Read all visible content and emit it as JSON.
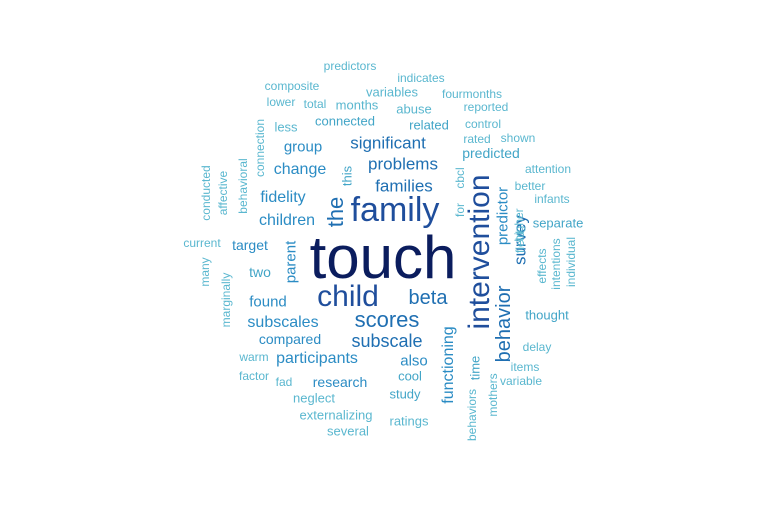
{
  "palette": {
    "c0": "#0b1d5e",
    "c1": "#1f4e9c",
    "c2": "#1f6fb2",
    "c3": "#2b8cc4",
    "c4": "#42a5c7",
    "c5": "#5ab7cf"
  },
  "words": [
    {
      "text": "touch",
      "size": 60,
      "rot": 0,
      "color": "c0"
    },
    {
      "text": "family",
      "size": 34,
      "rot": 0,
      "color": "c1"
    },
    {
      "text": "intervention",
      "size": 30,
      "rot": 1,
      "color": "c1"
    },
    {
      "text": "child",
      "size": 30,
      "rot": 0,
      "color": "c1"
    },
    {
      "text": "scores",
      "size": 22,
      "rot": 0,
      "color": "c2"
    },
    {
      "text": "the",
      "size": 22,
      "rot": 1,
      "color": "c2"
    },
    {
      "text": "beta",
      "size": 20,
      "rot": 0,
      "color": "c2"
    },
    {
      "text": "behavior",
      "size": 20,
      "rot": 1,
      "color": "c2"
    },
    {
      "text": "subscale",
      "size": 18,
      "rot": 0,
      "color": "c2"
    },
    {
      "text": "significant",
      "size": 17,
      "rot": 0,
      "color": "c2"
    },
    {
      "text": "problems",
      "size": 17,
      "rot": 0,
      "color": "c2"
    },
    {
      "text": "families",
      "size": 17,
      "rot": 0,
      "color": "c2"
    },
    {
      "text": "survey",
      "size": 17,
      "rot": 1,
      "color": "c2"
    },
    {
      "text": "change",
      "size": 16,
      "rot": 0,
      "color": "c3"
    },
    {
      "text": "fidelity",
      "size": 16,
      "rot": 0,
      "color": "c3"
    },
    {
      "text": "children",
      "size": 16,
      "rot": 0,
      "color": "c3"
    },
    {
      "text": "subscales",
      "size": 16,
      "rot": 0,
      "color": "c3"
    },
    {
      "text": "participants",
      "size": 16,
      "rot": 0,
      "color": "c3"
    },
    {
      "text": "functioning",
      "size": 16,
      "rot": 1,
      "color": "c3"
    },
    {
      "text": "predictor",
      "size": 15,
      "rot": 1,
      "color": "c3"
    },
    {
      "text": "group",
      "size": 15,
      "rot": 0,
      "color": "c3"
    },
    {
      "text": "parent",
      "size": 15,
      "rot": 1,
      "color": "c3"
    },
    {
      "text": "found",
      "size": 15,
      "rot": 0,
      "color": "c3"
    },
    {
      "text": "compared",
      "size": 14,
      "rot": 0,
      "color": "c3"
    },
    {
      "text": "research",
      "size": 14,
      "rot": 0,
      "color": "c3"
    },
    {
      "text": "also",
      "size": 15,
      "rot": 0,
      "color": "c3"
    },
    {
      "text": "target",
      "size": 14,
      "rot": 0,
      "color": "c3"
    },
    {
      "text": "two",
      "size": 14,
      "rot": 0,
      "color": "c4"
    },
    {
      "text": "predicted",
      "size": 14,
      "rot": 0,
      "color": "c4"
    },
    {
      "text": "related",
      "size": 13,
      "rot": 0,
      "color": "c4"
    },
    {
      "text": "connected",
      "size": 13,
      "rot": 0,
      "color": "c4"
    },
    {
      "text": "this",
      "size": 13,
      "rot": 1,
      "color": "c4"
    },
    {
      "text": "study",
      "size": 13,
      "rot": 0,
      "color": "c4"
    },
    {
      "text": "cool",
      "size": 13,
      "rot": 0,
      "color": "c4"
    },
    {
      "text": "separate",
      "size": 13,
      "rot": 0,
      "color": "c4"
    },
    {
      "text": "thought",
      "size": 13,
      "rot": 0,
      "color": "c4"
    },
    {
      "text": "time",
      "size": 13,
      "rot": 1,
      "color": "c4"
    },
    {
      "text": "externalizing",
      "size": 13,
      "rot": 0,
      "color": "c5"
    },
    {
      "text": "neglect",
      "size": 13,
      "rot": 0,
      "color": "c5"
    },
    {
      "text": "ratings",
      "size": 13,
      "rot": 0,
      "color": "c5"
    },
    {
      "text": "several",
      "size": 13,
      "rot": 0,
      "color": "c5"
    },
    {
      "text": "abuse",
      "size": 13,
      "rot": 0,
      "color": "c5"
    },
    {
      "text": "months",
      "size": 13,
      "rot": 0,
      "color": "c5"
    },
    {
      "text": "total",
      "size": 12,
      "rot": 0,
      "color": "c5"
    },
    {
      "text": "lower",
      "size": 12,
      "rot": 0,
      "color": "c5"
    },
    {
      "text": "less",
      "size": 13,
      "rot": 0,
      "color": "c5"
    },
    {
      "text": "variables",
      "size": 13,
      "rot": 0,
      "color": "c5"
    },
    {
      "text": "composite",
      "size": 12,
      "rot": 0,
      "color": "c5"
    },
    {
      "text": "predictors",
      "size": 12,
      "rot": 0,
      "color": "c5"
    },
    {
      "text": "indicates",
      "size": 12,
      "rot": 0,
      "color": "c5"
    },
    {
      "text": "fourmonths",
      "size": 12,
      "rot": 0,
      "color": "c5"
    },
    {
      "text": "reported",
      "size": 12,
      "rot": 0,
      "color": "c5"
    },
    {
      "text": "control",
      "size": 12,
      "rot": 0,
      "color": "c5"
    },
    {
      "text": "rated",
      "size": 12,
      "rot": 0,
      "color": "c5"
    },
    {
      "text": "shown",
      "size": 12,
      "rot": 0,
      "color": "c5"
    },
    {
      "text": "attention",
      "size": 12,
      "rot": 0,
      "color": "c5"
    },
    {
      "text": "better",
      "size": 12,
      "rot": 0,
      "color": "c5"
    },
    {
      "text": "infants",
      "size": 12,
      "rot": 0,
      "color": "c5"
    },
    {
      "text": "higher",
      "size": 12,
      "rot": 1,
      "color": "c5"
    },
    {
      "text": "field",
      "size": 12,
      "rot": 1,
      "color": "c5"
    },
    {
      "text": "effects",
      "size": 12,
      "rot": 1,
      "color": "c5"
    },
    {
      "text": "intentions",
      "size": 12,
      "rot": 1,
      "color": "c5"
    },
    {
      "text": "individual",
      "size": 12,
      "rot": 1,
      "color": "c5"
    },
    {
      "text": "delay",
      "size": 12,
      "rot": 0,
      "color": "c5"
    },
    {
      "text": "items",
      "size": 12,
      "rot": 0,
      "color": "c5"
    },
    {
      "text": "variable",
      "size": 12,
      "rot": 0,
      "color": "c5"
    },
    {
      "text": "mothers",
      "size": 12,
      "rot": 1,
      "color": "c5"
    },
    {
      "text": "behaviors",
      "size": 12,
      "rot": 1,
      "color": "c5"
    },
    {
      "text": "for",
      "size": 12,
      "rot": 1,
      "color": "c5"
    },
    {
      "text": "cbcl",
      "size": 12,
      "rot": 1,
      "color": "c5"
    },
    {
      "text": "connection",
      "size": 12,
      "rot": 1,
      "color": "c5"
    },
    {
      "text": "behavioral",
      "size": 12,
      "rot": 1,
      "color": "c5"
    },
    {
      "text": "affective",
      "size": 12,
      "rot": 1,
      "color": "c5"
    },
    {
      "text": "conducted",
      "size": 12,
      "rot": 1,
      "color": "c5"
    },
    {
      "text": "current",
      "size": 12,
      "rot": 0,
      "color": "c5"
    },
    {
      "text": "many",
      "size": 12,
      "rot": 1,
      "color": "c5"
    },
    {
      "text": "marginally",
      "size": 12,
      "rot": 1,
      "color": "c5"
    },
    {
      "text": "warm",
      "size": 12,
      "rot": 0,
      "color": "c5"
    },
    {
      "text": "factor",
      "size": 12,
      "rot": 0,
      "color": "c5"
    },
    {
      "text": "fad",
      "size": 12,
      "rot": 0,
      "color": "c5"
    }
  ]
}
